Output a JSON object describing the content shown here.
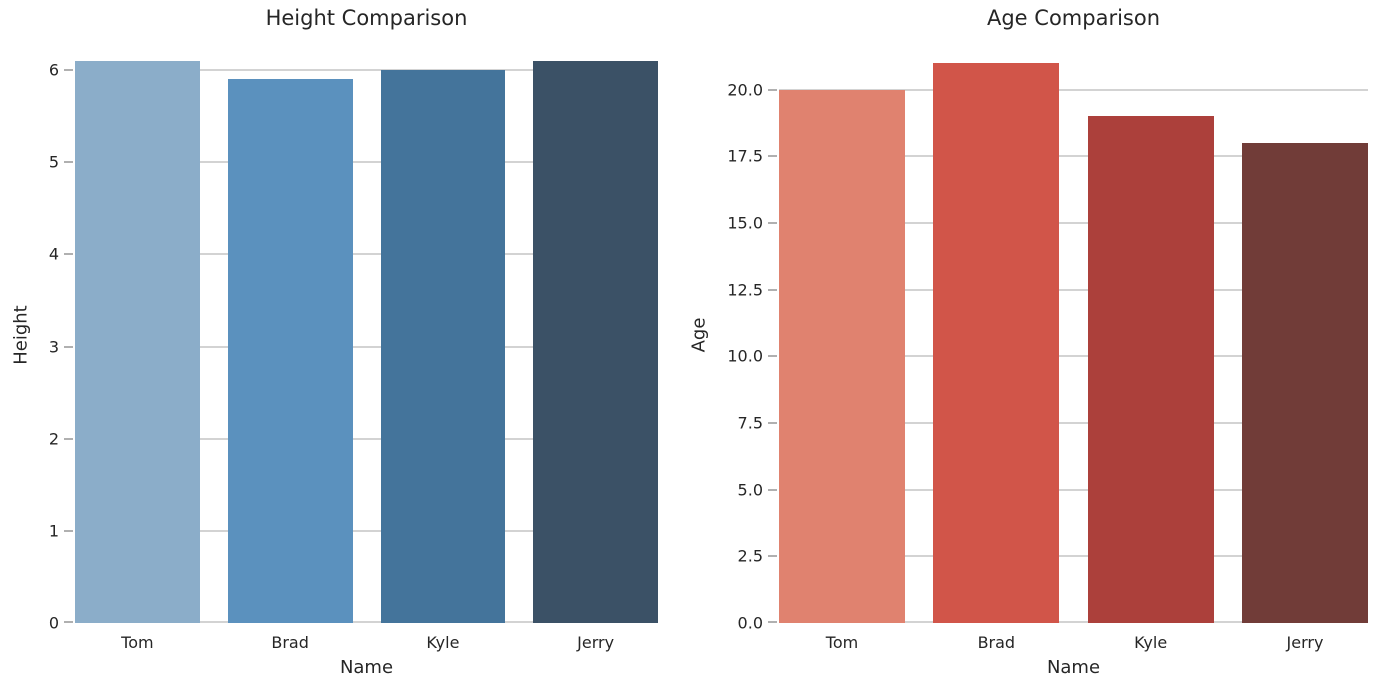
{
  "style": {
    "background": "#ffffff",
    "grid_color": "#d3d3d3",
    "tick_mark_color": "#b0b0b0",
    "text_color": "#262626"
  },
  "chart_data": [
    {
      "type": "bar",
      "title": "Height Comparison",
      "xlabel": "Name",
      "ylabel": "Height",
      "categories": [
        "Tom",
        "Brad",
        "Kyle",
        "Jerry"
      ],
      "values": [
        6.1,
        5.9,
        6.0,
        6.1
      ],
      "bar_colors": [
        "#8badc9",
        "#5b91be",
        "#44749b",
        "#3b5166"
      ],
      "palette": "Blues_d",
      "yticks": [
        0,
        1,
        2,
        3,
        4,
        5,
        6
      ],
      "ytick_labels": [
        "0",
        "1",
        "2",
        "3",
        "4",
        "5",
        "6"
      ],
      "ylim": [
        0,
        6.25
      ],
      "grid": true,
      "legend": null
    },
    {
      "type": "bar",
      "title": "Age Comparison",
      "xlabel": "Name",
      "ylabel": "Age",
      "categories": [
        "Tom",
        "Brad",
        "Kyle",
        "Jerry"
      ],
      "values": [
        20,
        21,
        19,
        18
      ],
      "bar_colors": [
        "#e0826f",
        "#d15549",
        "#ac403b",
        "#713c38"
      ],
      "palette": "Reds_d",
      "yticks": [
        0,
        2.5,
        5,
        7.5,
        10,
        12.5,
        15,
        17.5,
        20
      ],
      "ytick_labels": [
        "0.0",
        "2.5",
        "5.0",
        "7.5",
        "10.0",
        "12.5",
        "15.0",
        "17.5",
        "20.0"
      ],
      "ylim": [
        0,
        21.6
      ],
      "grid": true,
      "legend": null
    }
  ]
}
